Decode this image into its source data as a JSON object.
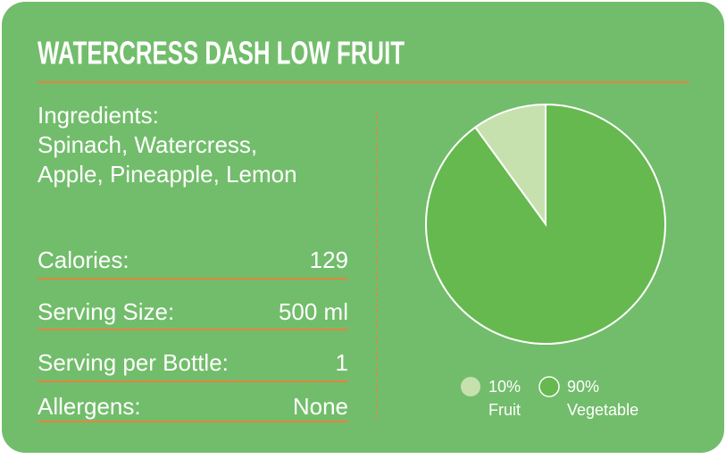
{
  "title": "WATERCRESS DASH LOW FRUIT",
  "ingredients": {
    "label": "Ingredients:",
    "lines": [
      "Spinach, Watercress,",
      "Apple, Pineapple, Lemon"
    ]
  },
  "facts": [
    {
      "label": "Calories:",
      "value": "129"
    },
    {
      "label": "Serving Size:",
      "value": "500 ml"
    },
    {
      "label": "Serving per Bottle:",
      "value": "1"
    },
    {
      "label": "Allergens:",
      "value": "None"
    }
  ],
  "chart_data": {
    "type": "pie",
    "categories": [
      "Fruit",
      "Vegetable"
    ],
    "values": [
      10,
      90
    ],
    "value_labels": [
      "10%",
      "90%"
    ],
    "colors": [
      "#c6e1ae",
      "#66b94f"
    ]
  }
}
